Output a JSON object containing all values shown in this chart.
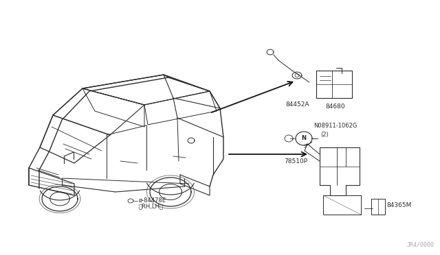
{
  "background_color": "#ffffff",
  "page_code": "JR4/0000",
  "line_color": "#2a2a2a",
  "text_color": "#2a2a2a",
  "font_size_label": 6.5,
  "font_size_page": 6,
  "parts": {
    "84452A": {
      "label": "84452A"
    },
    "84680": {
      "label": "84680"
    },
    "78510P": {
      "label": "78510P"
    },
    "84365M": {
      "label": "84365M"
    },
    "08911": {
      "label_line1": "N08911-1062G",
      "label_line2": "(2)"
    },
    "84478E": {
      "label_line1": "ø-84478E",
      "label_line2": "（RH,LH）"
    }
  }
}
